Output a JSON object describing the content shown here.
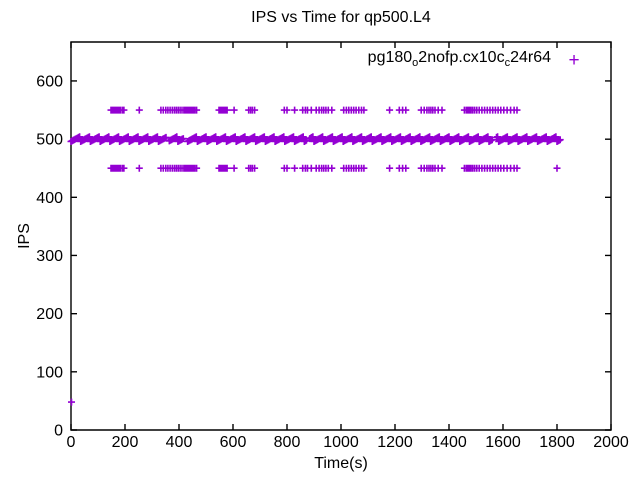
{
  "title": "IPS vs Time for qp500.L4",
  "legend": {
    "part1": "pg180",
    "sub1": "o",
    "part2": "2nofp.cx10c",
    "sub2": "c",
    "part3": "24r64",
    "marker_glyph": "+"
  },
  "colors": {
    "series": "#9400D3",
    "axis": "#000000",
    "text": "#000000",
    "background": "#ffffff"
  },
  "chart_data": {
    "type": "scatter",
    "title": "IPS vs Time for qp500.L4",
    "xlabel": "Time(s)",
    "ylabel": "IPS",
    "xlim": [
      0,
      2000
    ],
    "ylim": [
      0,
      667
    ],
    "x_ticks": [
      0,
      200,
      400,
      600,
      800,
      1000,
      1200,
      1400,
      1600,
      1800,
      2000
    ],
    "y_ticks": [
      0,
      100,
      200,
      300,
      400,
      500,
      600
    ],
    "grid": false,
    "tick_style": "inward-mirrored",
    "legend_position": "top-right-inside",
    "marker_half_size_px": 3.5,
    "series": [
      {
        "name": "pg180_o2nofp.cx10c_c24r64",
        "marker": "plus",
        "color": "#9400D3",
        "bands": [
          {
            "y": 550,
            "x": [
              148,
              154,
              159,
              163,
              167,
              172,
              177,
              183,
              190,
              196,
              253,
              333,
              342,
              351,
              359,
              367,
              375,
              383,
              390,
              397,
              404,
              411,
              418,
              424,
              428,
              432,
              436,
              440,
              444,
              448,
              453,
              459,
              465,
              548,
              553,
              557,
              561,
              565,
              569,
              573,
              578,
              604,
              658,
              665,
              672,
              680,
              790,
              800,
              828,
              858,
              868,
              876,
              890,
              908,
              919,
              928,
              936,
              944,
              953,
              966,
              1010,
              1020,
              1029,
              1038,
              1047,
              1056,
              1066,
              1076,
              1085,
              1180,
              1216,
              1228,
              1240,
              1297,
              1308,
              1318,
              1326,
              1333,
              1340,
              1348,
              1360,
              1374,
              1457,
              1464,
              1470,
              1476,
              1482,
              1488,
              1495,
              1503,
              1512,
              1522,
              1532,
              1542,
              1552,
              1562,
              1572,
              1582,
              1592,
              1603,
              1615,
              1628,
              1641,
              1652
            ]
          },
          {
            "y": 450,
            "x": [
              148,
              154,
              159,
              163,
              167,
              172,
              177,
              183,
              190,
              196,
              253,
              333,
              342,
              351,
              359,
              367,
              375,
              383,
              390,
              397,
              404,
              411,
              418,
              424,
              428,
              432,
              436,
              440,
              444,
              448,
              453,
              459,
              465,
              548,
              553,
              557,
              561,
              565,
              569,
              573,
              578,
              604,
              658,
              665,
              672,
              680,
              790,
              800,
              828,
              858,
              868,
              876,
              890,
              908,
              919,
              928,
              936,
              944,
              953,
              966,
              1010,
              1020,
              1029,
              1038,
              1047,
              1056,
              1066,
              1076,
              1085,
              1180,
              1216,
              1228,
              1240,
              1297,
              1308,
              1318,
              1326,
              1333,
              1340,
              1348,
              1360,
              1374,
              1457,
              1464,
              1470,
              1476,
              1482,
              1488,
              1495,
              1503,
              1512,
              1522,
              1532,
              1542,
              1552,
              1562,
              1572,
              1582,
              1592,
              1603,
              1615,
              1628,
              1641,
              1652,
              1800
            ]
          }
        ],
        "dense_band": {
          "y": 500,
          "x_start": 0,
          "x_end": 1812,
          "x_step": 4,
          "y_jitter": 4,
          "gaps": [
            358,
            425,
            878,
            1567
          ],
          "gap_halfwidth": 5
        },
        "outliers": [
          [
            2,
            48
          ]
        ]
      }
    ]
  }
}
